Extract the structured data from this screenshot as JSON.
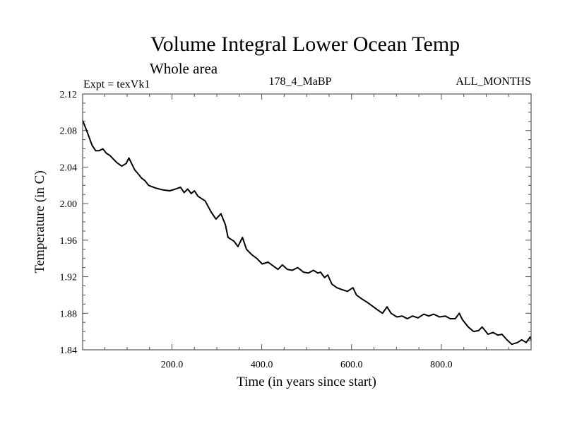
{
  "chart_data": {
    "type": "line",
    "title": "Volume Integral Lower Ocean Temp",
    "subtitle": "Whole area",
    "annotations": {
      "left": "Expt = texVk1",
      "center": "178_4_MaBP",
      "right": "ALL_MONTHS"
    },
    "xlabel": "Time (in years since start)",
    "ylabel": "Temperature (in C)",
    "xlim": [
      1,
      1000
    ],
    "ylim": [
      1.84,
      2.12
    ],
    "xticks": [
      200,
      400,
      600,
      800
    ],
    "xtick_labels": [
      "200.0",
      "400.0",
      "600.0",
      "800.0"
    ],
    "xminor_step": 50,
    "yticks": [
      1.84,
      1.88,
      1.92,
      1.96,
      2.0,
      2.04,
      2.08,
      2.12
    ],
    "ytick_labels": [
      "1.84",
      "1.88",
      "1.92",
      "1.96",
      "2.00",
      "2.04",
      "2.08",
      "2.12"
    ],
    "yminor_step": 0.01,
    "grid": false,
    "legend": "none",
    "series": [
      {
        "name": "Lower Ocean Temp",
        "color": "#000000",
        "x": [
          1,
          10,
          22,
          30,
          38,
          46,
          54,
          61,
          69,
          77,
          88,
          98,
          104,
          110,
          117,
          124,
          132,
          140,
          148,
          164,
          180,
          195,
          208,
          219,
          227,
          235,
          243,
          250,
          258,
          274,
          287,
          298,
          309,
          319,
          325,
          338,
          347,
          357,
          366,
          378,
          389,
          401,
          414,
          425,
          436,
          446,
          457,
          468,
          480,
          493,
          504,
          515,
          525,
          531,
          540,
          547,
          556,
          567,
          578,
          591,
          603,
          611,
          622,
          635,
          646,
          657,
          669,
          679,
          688,
          701,
          713,
          724,
          736,
          748,
          761,
          772,
          783,
          796,
          809,
          820,
          831,
          840,
          847,
          860,
          872,
          883,
          891,
          904,
          915,
          926,
          935,
          946,
          957,
          970,
          979,
          989,
          998,
          1000
        ],
        "y": [
          2.091,
          2.08,
          2.064,
          2.058,
          2.058,
          2.06,
          2.055,
          2.053,
          2.049,
          2.045,
          2.041,
          2.044,
          2.05,
          2.044,
          2.037,
          2.033,
          2.028,
          2.025,
          2.02,
          2.017,
          2.015,
          2.014,
          2.016,
          2.018,
          2.012,
          2.016,
          2.011,
          2.014,
          2.008,
          2.003,
          1.991,
          1.983,
          1.989,
          1.977,
          1.963,
          1.959,
          1.953,
          1.963,
          1.95,
          1.944,
          1.94,
          1.934,
          1.936,
          1.932,
          1.928,
          1.933,
          1.928,
          1.927,
          1.93,
          1.925,
          1.924,
          1.927,
          1.924,
          1.925,
          1.919,
          1.922,
          1.912,
          1.908,
          1.906,
          1.904,
          1.908,
          1.9,
          1.896,
          1.892,
          1.888,
          1.884,
          1.88,
          1.887,
          1.88,
          1.876,
          1.877,
          1.874,
          1.877,
          1.875,
          1.879,
          1.877,
          1.879,
          1.876,
          1.877,
          1.874,
          1.874,
          1.88,
          1.873,
          1.865,
          1.86,
          1.861,
          1.865,
          1.857,
          1.859,
          1.856,
          1.857,
          1.851,
          1.846,
          1.848,
          1.851,
          1.848,
          1.854,
          1.851
        ]
      }
    ]
  }
}
